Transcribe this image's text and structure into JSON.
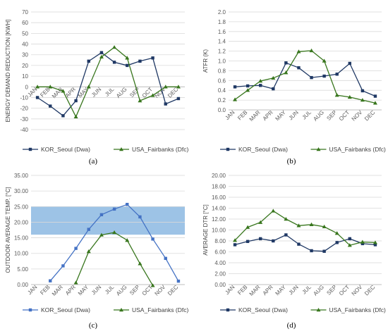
{
  "chart_data": [
    {
      "panel": "(a)",
      "type": "line",
      "title": "",
      "xlabel": "",
      "ylabel": "ENERGY DEMAND REDUCTION [KWH]",
      "categories": [
        "JAN",
        "FEB",
        "MAR",
        "APR",
        "MAY",
        "JUN",
        "JUL",
        "AUG",
        "SEP",
        "OCT",
        "NOV",
        "DEC"
      ],
      "ylim": [
        -40,
        70
      ],
      "yticks": [
        -40,
        -30,
        -20,
        -10,
        0,
        10,
        20,
        30,
        40,
        50,
        60,
        70
      ],
      "ytick_labels": [
        "-40",
        "-30",
        "-20",
        "-10",
        "0",
        "10",
        "20",
        "30",
        "40",
        "50",
        "60",
        "70"
      ],
      "grid": true,
      "legend": "bottom",
      "series": [
        {
          "name": "KOR_Seoul (Dwa)",
          "color": "#1f3864",
          "marker": "square",
          "values": [
            -10,
            -18,
            -27,
            -13,
            24,
            32,
            23,
            20,
            24,
            27,
            -16,
            -11
          ]
        },
        {
          "name": "USA_Fairbanks (Dfc)",
          "color": "#38761d",
          "marker": "triangle",
          "values": [
            0,
            0,
            -4,
            -28,
            0,
            28,
            37,
            27,
            -13,
            -8,
            0,
            0
          ]
        }
      ]
    },
    {
      "panel": "(b)",
      "type": "line",
      "title": "",
      "xlabel": "",
      "ylabel": "ATFR (K)",
      "categories": [
        "JAN",
        "FEB",
        "MAR",
        "APR",
        "MAY",
        "JUN",
        "JUL",
        "AUG",
        "SEP",
        "OCT",
        "NOV",
        "DEC"
      ],
      "ylim": [
        0,
        2
      ],
      "yticks": [
        0,
        0.2,
        0.4,
        0.6,
        0.8,
        1.0,
        1.2,
        1.4,
        1.6,
        1.8,
        2.0
      ],
      "ytick_labels": [
        "0.0",
        "0.2",
        "0.4",
        "0.6",
        "0.8",
        "1.0",
        "1.2",
        "1.4",
        "1.6",
        "1.8",
        "2.0"
      ],
      "grid": true,
      "legend": "bottom",
      "series": [
        {
          "name": "KOR_Seoul (Dwa)",
          "color": "#1f3864",
          "marker": "square",
          "values": [
            0.47,
            0.49,
            0.5,
            0.43,
            0.96,
            0.86,
            0.66,
            0.69,
            0.73,
            0.95,
            0.39,
            0.28
          ]
        },
        {
          "name": "USA_Fairbanks (Dfc)",
          "color": "#38761d",
          "marker": "triangle",
          "values": [
            0.21,
            0.4,
            0.59,
            0.65,
            0.76,
            1.19,
            1.21,
            1.0,
            0.3,
            0.26,
            0.2,
            0.14
          ]
        }
      ]
    },
    {
      "panel": "(c)",
      "type": "line",
      "title": "",
      "xlabel": "",
      "ylabel": "OUTDOOR AVERAGE TEMP. [°C]",
      "categories": [
        "JAN",
        "FEB",
        "MAR",
        "APR",
        "MAY",
        "JUN",
        "JUL",
        "AUG",
        "SEP",
        "OCT",
        "NOV",
        "DEC"
      ],
      "ylim": [
        0,
        35
      ],
      "yticks": [
        0,
        5,
        10,
        15,
        20,
        25,
        30,
        35
      ],
      "ytick_labels": [
        "0.00",
        "5.00",
        "10.00",
        "15.00",
        "20.00",
        "25.00",
        "30.00",
        "35.00"
      ],
      "grid": true,
      "legend": "bottom",
      "band": {
        "from": 16,
        "to": 25,
        "color": "#5b9bd5"
      },
      "series": [
        {
          "name": "KOR_Seoul (Dwa)",
          "color": "#4472c4",
          "marker": "square",
          "values": [
            null,
            1.2,
            6.0,
            11.6,
            17.7,
            22.4,
            24.2,
            25.7,
            21.7,
            14.6,
            8.4,
            1.1
          ]
        },
        {
          "name": "USA_Fairbanks (Dfc)",
          "color": "#38761d",
          "marker": "triangle",
          "values": [
            null,
            null,
            null,
            0.6,
            10.6,
            15.9,
            16.7,
            14.2,
            6.7,
            -0.3,
            null,
            null
          ]
        }
      ]
    },
    {
      "panel": "(d)",
      "type": "line",
      "title": "",
      "xlabel": "",
      "ylabel": "AVERAGE DTR [°C]",
      "categories": [
        "JAN",
        "FEB",
        "MAR",
        "APR",
        "MAY",
        "JUN",
        "JUL",
        "AUG",
        "SEP",
        "OCT",
        "NOV",
        "DEC"
      ],
      "ylim": [
        0,
        20
      ],
      "yticks": [
        0,
        2,
        4,
        6,
        8,
        10,
        12,
        14,
        16,
        18,
        20
      ],
      "ytick_labels": [
        "0.00",
        "2.00",
        "4.00",
        "6.00",
        "8.00",
        "10.00",
        "12.00",
        "14.00",
        "16.00",
        "18.00",
        "20.00"
      ],
      "grid": true,
      "legend": "bottom",
      "series": [
        {
          "name": "KOR_Seoul (Dwa)",
          "color": "#1f3864",
          "marker": "square",
          "values": [
            7.3,
            7.9,
            8.4,
            8.0,
            9.1,
            7.4,
            6.2,
            6.1,
            7.7,
            8.4,
            7.5,
            7.3
          ]
        },
        {
          "name": "USA_Fairbanks (Dfc)",
          "color": "#38761d",
          "marker": "triangle",
          "values": [
            8.1,
            10.5,
            11.4,
            13.5,
            12.0,
            10.8,
            11.0,
            10.6,
            9.4,
            7.2,
            7.8,
            7.7
          ]
        }
      ]
    }
  ]
}
